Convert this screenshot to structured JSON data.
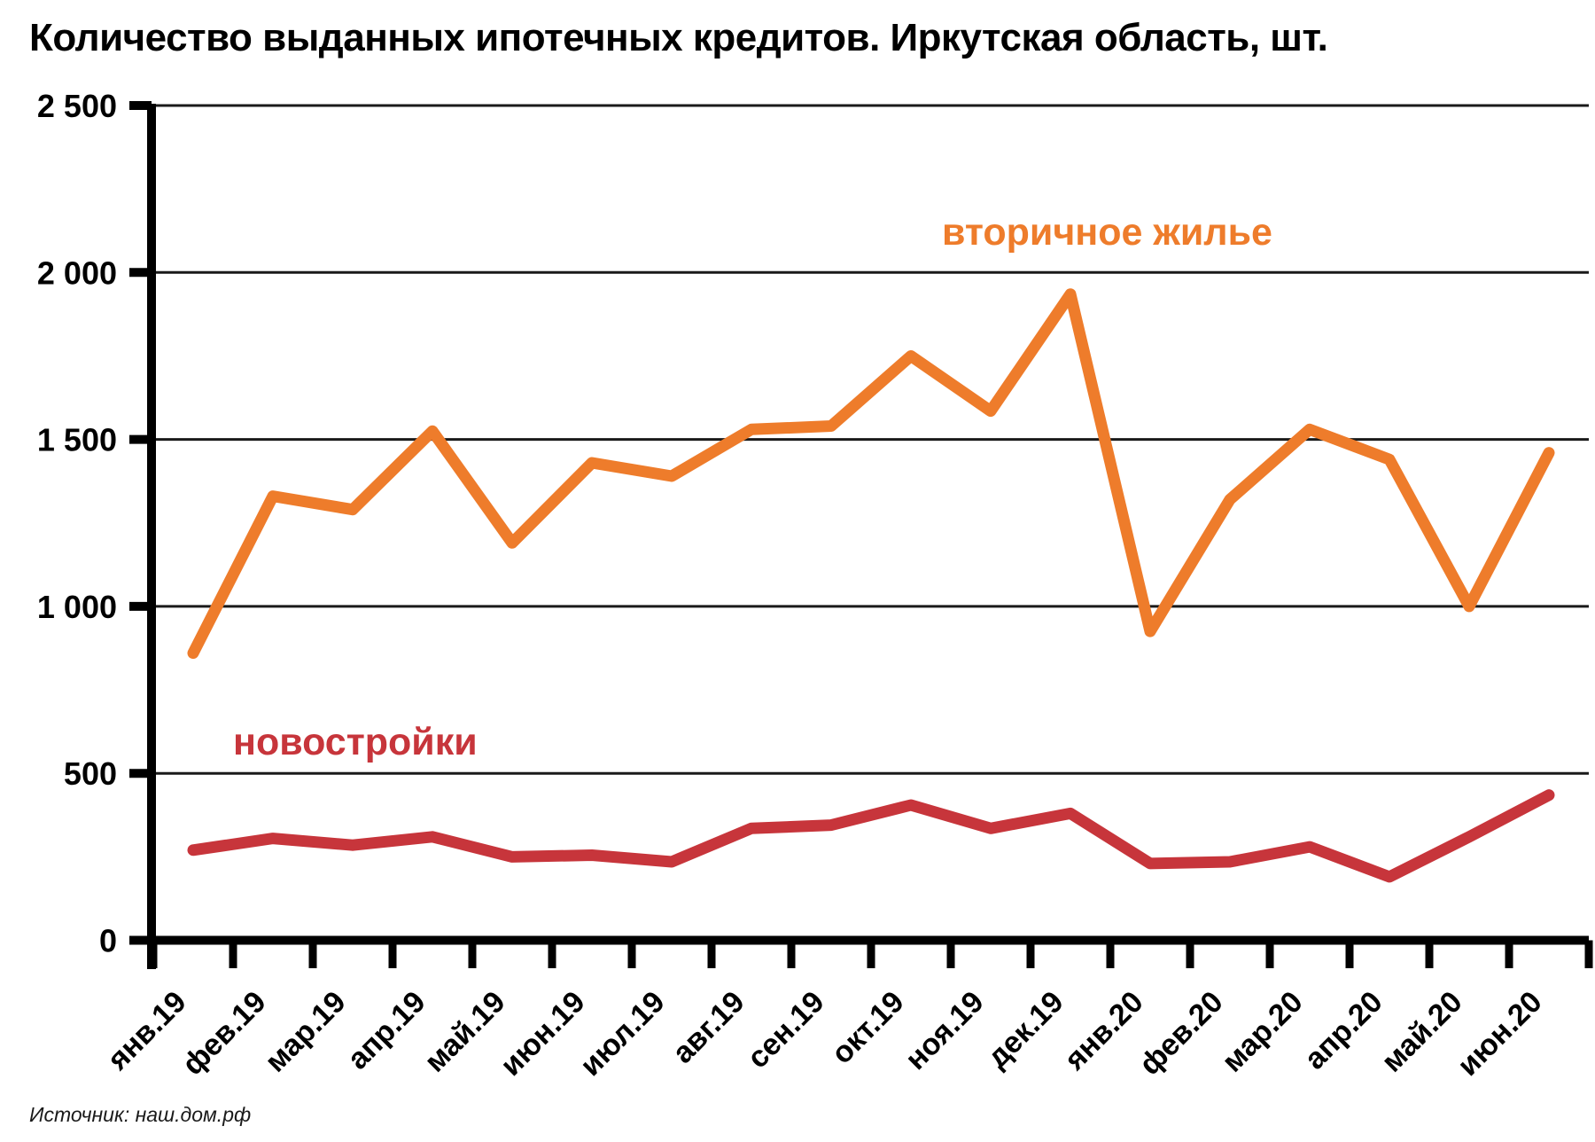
{
  "chart_data": {
    "type": "line",
    "title": "Количество выданных ипотечных кредитов. Иркутская область, шт.",
    "source": "Источник: наш.дом.рф",
    "categories": [
      "янв.19",
      "фев.19",
      "мар.19",
      "апр.19",
      "май.19",
      "июн.19",
      "июл.19",
      "авг.19",
      "сен.19",
      "окт.19",
      "ноя.19",
      "дек.19",
      "янв.20",
      "фев.20",
      "мар.20",
      "апр.20",
      "май.20",
      "июн.20"
    ],
    "series": [
      {
        "name": "вторичное жилье",
        "color": "#EE7C2B",
        "values": [
          860,
          1330,
          1290,
          1525,
          1190,
          1430,
          1390,
          1530,
          1540,
          1750,
          1585,
          1935,
          925,
          1320,
          1530,
          1440,
          1000,
          1460
        ]
      },
      {
        "name": "новостройки",
        "color": "#C7353B",
        "values": [
          270,
          305,
          285,
          310,
          250,
          255,
          235,
          335,
          345,
          405,
          335,
          380,
          230,
          235,
          280,
          190,
          310,
          435
        ]
      }
    ],
    "ylim": [
      0,
      2500
    ],
    "y_ticks": [
      {
        "value": 0,
        "label": "0"
      },
      {
        "value": 500,
        "label": "500"
      },
      {
        "value": 1000,
        "label": "1 000"
      },
      {
        "value": 1500,
        "label": "1 500"
      },
      {
        "value": 2000,
        "label": "2 000"
      },
      {
        "value": 2500,
        "label": "2 500"
      }
    ],
    "grid": "horizontal-only",
    "legend_position": "inline-annotations",
    "x_label_rotation_deg": -45
  }
}
